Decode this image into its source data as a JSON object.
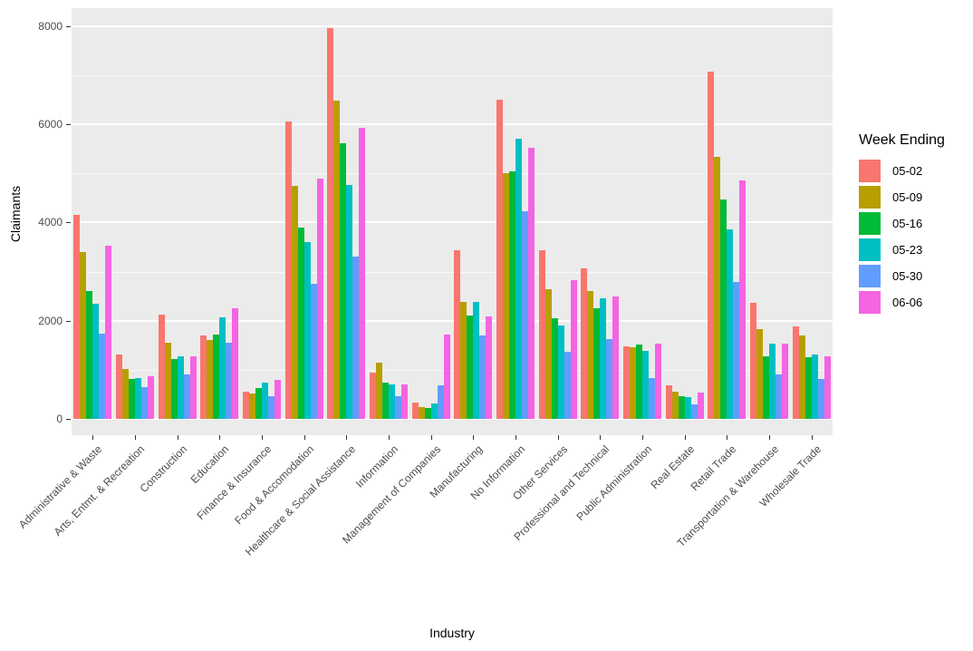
{
  "style": {
    "panel_bg": "#EBEBEB",
    "grid_color": "#FFFFFF",
    "axis_text_color": "#4D4D4D",
    "tick_mark_color": "#333333",
    "title_color": "#000000"
  },
  "axes": {
    "y_title": "Claimants",
    "x_title": "Industry",
    "y_tick_labels": [
      "0",
      "2000",
      "4000",
      "6000",
      "8000"
    ]
  },
  "legend": {
    "title": "Week Ending",
    "entries": [
      {
        "label": "05-02",
        "color": "#F8766D"
      },
      {
        "label": "05-09",
        "color": "#B79F00"
      },
      {
        "label": "05-16",
        "color": "#00BA38"
      },
      {
        "label": "05-23",
        "color": "#00BFC4"
      },
      {
        "label": "05-30",
        "color": "#619CFF"
      },
      {
        "label": "06-06",
        "color": "#F564E2"
      }
    ]
  },
  "chart_data": {
    "type": "bar",
    "grouping": "dodged",
    "title": "",
    "xlabel": "Industry",
    "ylabel": "Claimants",
    "ylim": [
      0,
      8370
    ],
    "y_major_ticks": [
      0,
      2000,
      4000,
      6000,
      8000
    ],
    "y_minor_ticks": [
      1000,
      3000,
      5000,
      7000
    ],
    "grid": true,
    "legend_title": "Week Ending",
    "legend_position": "right",
    "categories": [
      "Administrative & Waste",
      "Arts, Entmt. & Recreation",
      "Construction",
      "Education",
      "Finance & Insurance",
      "Food & Accomodation",
      "Healthcare & Social Assistance",
      "Information",
      "Management of Companies",
      "Manufacturing",
      "No Information",
      "Other Services",
      "Professional and Technical",
      "Public Administration",
      "Real Estate",
      "Retail Trade",
      "Transportation & Warehouse",
      "Wholesale Trade"
    ],
    "series": [
      {
        "name": "05-02",
        "color": "#F8766D",
        "values": [
          4150,
          1320,
          2120,
          1690,
          560,
          6060,
          7960,
          950,
          330,
          3440,
          6500,
          3440,
          3060,
          1480,
          680,
          7080,
          2370,
          1890
        ]
      },
      {
        "name": "05-09",
        "color": "#B79F00",
        "values": [
          3390,
          1010,
          1560,
          1610,
          510,
          4740,
          6480,
          1150,
          240,
          2380,
          5000,
          2650,
          2600,
          1450,
          560,
          5340,
          1820,
          1700
        ]
      },
      {
        "name": "05-16",
        "color": "#00BA38",
        "values": [
          2600,
          820,
          1210,
          1720,
          620,
          3900,
          5620,
          740,
          220,
          2100,
          5050,
          2050,
          2250,
          1520,
          470,
          4470,
          1270,
          1260
        ]
      },
      {
        "name": "05-23",
        "color": "#00BFC4",
        "values": [
          2350,
          840,
          1280,
          2060,
          740,
          3600,
          4770,
          700,
          310,
          2380,
          5710,
          1900,
          2450,
          1380,
          450,
          3860,
          1530,
          1320
        ]
      },
      {
        "name": "05-30",
        "color": "#619CFF",
        "values": [
          1740,
          640,
          900,
          1550,
          470,
          2760,
          3300,
          470,
          690,
          1700,
          4230,
          1370,
          1630,
          830,
          300,
          2780,
          900,
          810
        ]
      },
      {
        "name": "06-06",
        "color": "#F564E2",
        "values": [
          3520,
          870,
          1270,
          2250,
          790,
          4900,
          5920,
          700,
          1720,
          2080,
          5530,
          2830,
          2490,
          1530,
          530,
          4850,
          1530,
          1280
        ]
      }
    ]
  }
}
